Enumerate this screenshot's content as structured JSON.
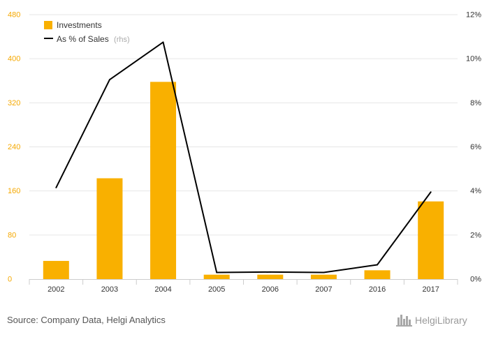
{
  "chart_data": {
    "type": "bar",
    "categories": [
      "2002",
      "2003",
      "2004",
      "2005",
      "2006",
      "2007",
      "2016",
      "2017"
    ],
    "series": [
      {
        "name": "Investments",
        "type": "bar",
        "axis": "left",
        "color": "#f9b000",
        "values": [
          33,
          183,
          358,
          8,
          8,
          8,
          16,
          141
        ]
      },
      {
        "name": "As % of Sales",
        "name_suffix": "(rhs)",
        "type": "line",
        "axis": "right",
        "color": "#000000",
        "values": [
          4.15,
          9.05,
          10.75,
          0.3,
          0.32,
          0.3,
          0.65,
          3.95
        ]
      }
    ],
    "y_left": {
      "ylim": [
        0,
        480
      ],
      "ticks": [
        "0",
        "80",
        "160",
        "240",
        "320",
        "400",
        "480"
      ],
      "tick_color": "#f5a800"
    },
    "y_right": {
      "ylim": [
        0,
        12
      ],
      "ticks": [
        "0%",
        "2%",
        "4%",
        "6%",
        "8%",
        "10%",
        "12%"
      ]
    },
    "grid": true,
    "legend_position": "top-left"
  },
  "footer": {
    "source": "Source: Company Data, Helgi Analytics",
    "brand": "HelgiLibrary"
  },
  "icons": {
    "brand_logo": "city-skyline-icon"
  }
}
